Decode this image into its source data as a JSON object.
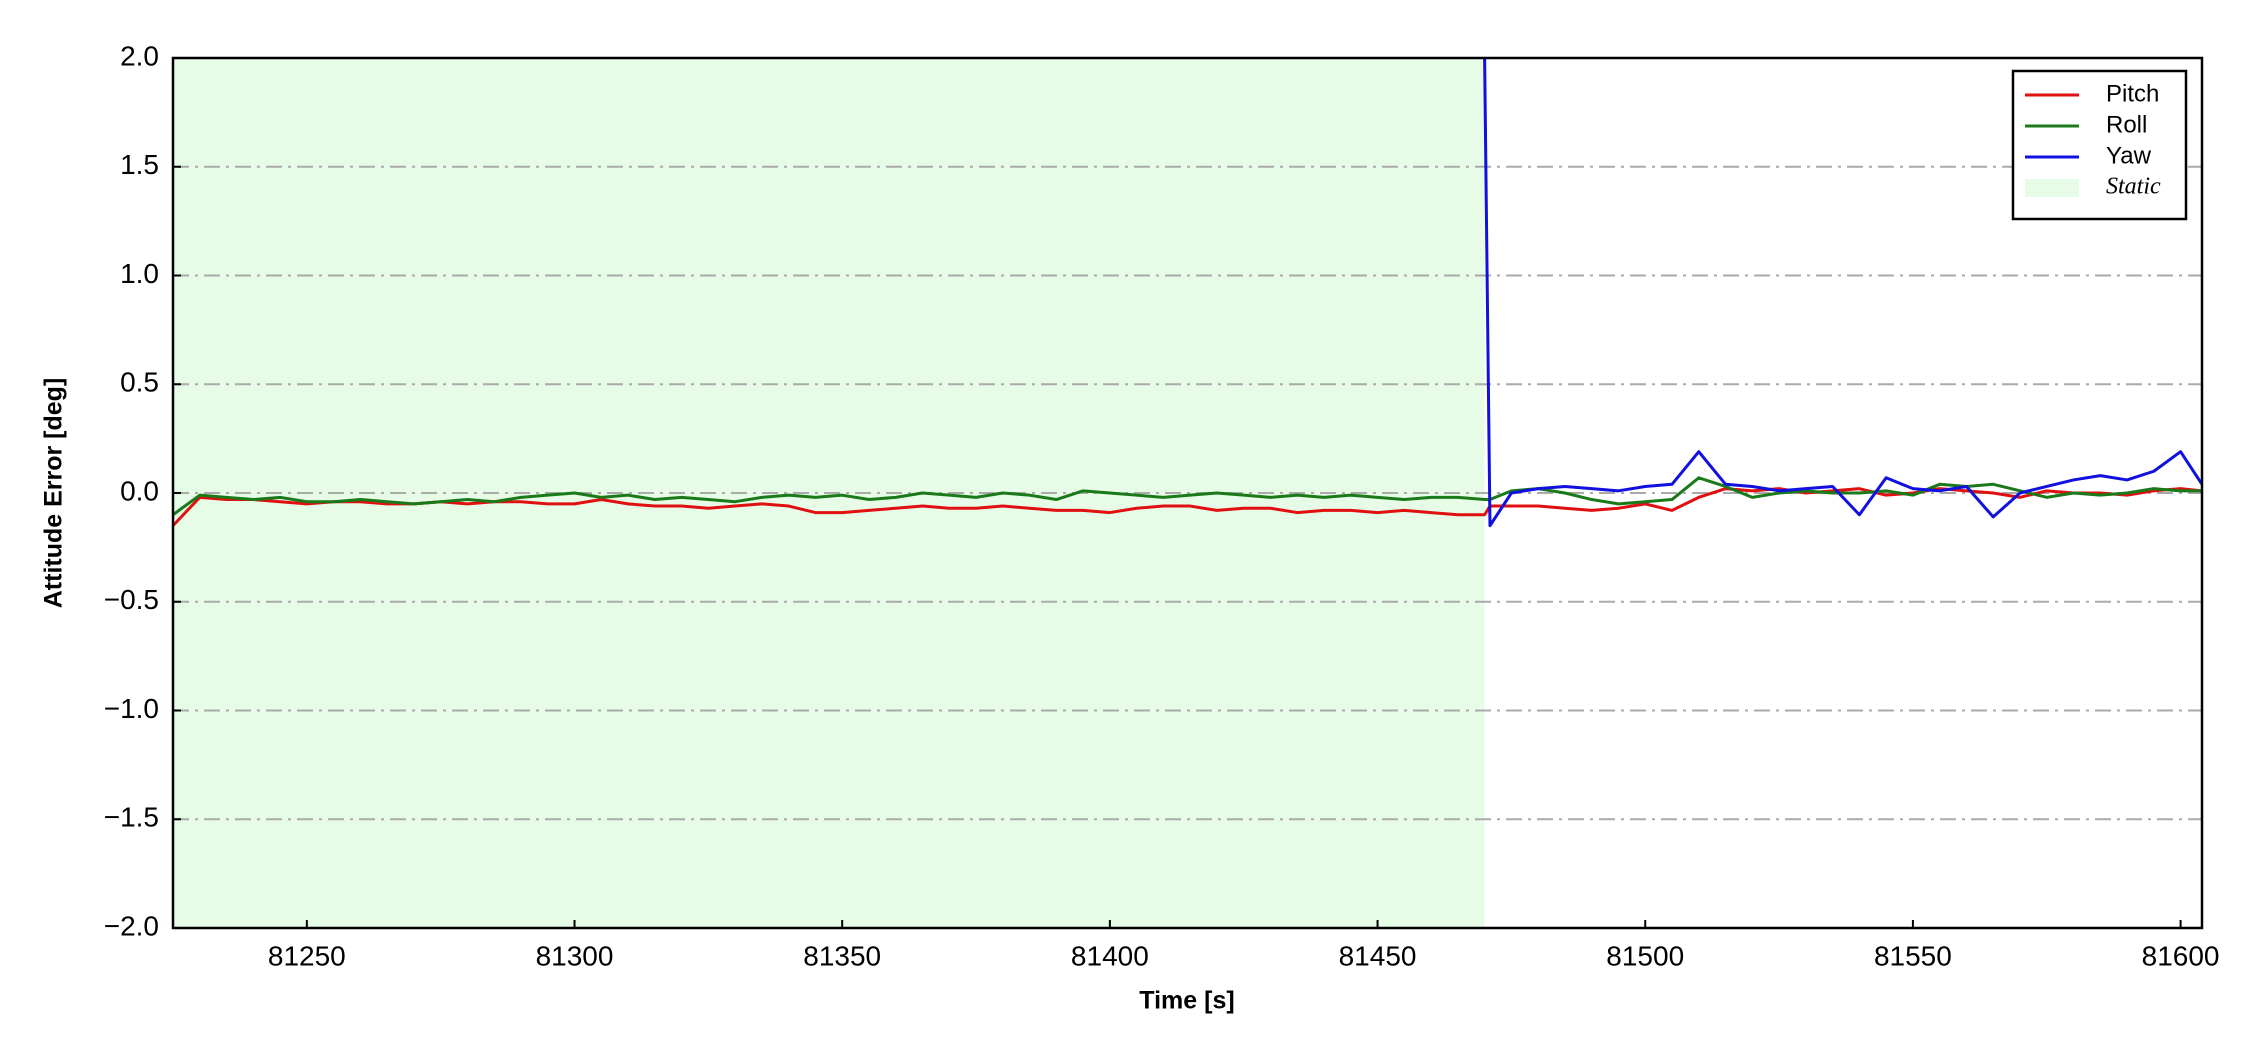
{
  "chart_data": {
    "type": "line",
    "xlabel": "Time [s]",
    "ylabel": "Attitude Error [deg]",
    "x": [
      81225,
      81230,
      81235,
      81240,
      81245,
      81250,
      81255,
      81260,
      81265,
      81270,
      81275,
      81280,
      81285,
      81290,
      81295,
      81300,
      81305,
      81310,
      81315,
      81320,
      81325,
      81330,
      81335,
      81340,
      81345,
      81350,
      81355,
      81360,
      81365,
      81370,
      81375,
      81380,
      81385,
      81390,
      81395,
      81400,
      81405,
      81410,
      81415,
      81420,
      81425,
      81430,
      81435,
      81440,
      81445,
      81450,
      81455,
      81460,
      81465,
      81470,
      81471,
      81475,
      81480,
      81485,
      81490,
      81495,
      81500,
      81505,
      81510,
      81515,
      81520,
      81525,
      81530,
      81535,
      81540,
      81545,
      81550,
      81555,
      81560,
      81565,
      81570,
      81575,
      81580,
      81585,
      81590,
      81595,
      81600,
      81604
    ],
    "series": [
      {
        "name": "Pitch",
        "color": "#e01010",
        "values": [
          -0.15,
          -0.02,
          -0.03,
          -0.03,
          -0.04,
          -0.05,
          -0.04,
          -0.04,
          -0.05,
          -0.05,
          -0.04,
          -0.05,
          -0.04,
          -0.04,
          -0.05,
          -0.05,
          -0.03,
          -0.05,
          -0.06,
          -0.06,
          -0.07,
          -0.06,
          -0.05,
          -0.06,
          -0.09,
          -0.09,
          -0.08,
          -0.07,
          -0.06,
          -0.07,
          -0.07,
          -0.06,
          -0.07,
          -0.08,
          -0.08,
          -0.09,
          -0.07,
          -0.06,
          -0.06,
          -0.08,
          -0.07,
          -0.07,
          -0.09,
          -0.08,
          -0.08,
          -0.09,
          -0.08,
          -0.09,
          -0.1,
          -0.1,
          -0.06,
          -0.06,
          -0.06,
          -0.07,
          -0.08,
          -0.07,
          -0.05,
          -0.08,
          -0.02,
          0.02,
          0.01,
          0.02,
          0.0,
          0.01,
          0.02,
          -0.01,
          0.0,
          0.02,
          0.01,
          0.0,
          -0.02,
          0.01,
          0.0,
          0.0,
          -0.01,
          0.01,
          0.02,
          0.01
        ]
      },
      {
        "name": "Roll",
        "color": "#1a7a1a",
        "values": [
          -0.1,
          -0.01,
          -0.02,
          -0.03,
          -0.02,
          -0.04,
          -0.04,
          -0.03,
          -0.04,
          -0.05,
          -0.04,
          -0.03,
          -0.04,
          -0.02,
          -0.01,
          0.0,
          -0.02,
          -0.01,
          -0.03,
          -0.02,
          -0.03,
          -0.04,
          -0.02,
          -0.01,
          -0.02,
          -0.01,
          -0.03,
          -0.02,
          0.0,
          -0.01,
          -0.02,
          0.0,
          -0.01,
          -0.03,
          0.01,
          0.0,
          -0.01,
          -0.02,
          -0.01,
          0.0,
          -0.01,
          -0.02,
          -0.01,
          -0.02,
          -0.01,
          -0.02,
          -0.03,
          -0.02,
          -0.02,
          -0.03,
          -0.03,
          0.01,
          0.02,
          0.0,
          -0.03,
          -0.05,
          -0.04,
          -0.03,
          0.07,
          0.03,
          -0.02,
          0.0,
          0.01,
          0.0,
          0.0,
          0.01,
          -0.01,
          0.04,
          0.03,
          0.04,
          0.01,
          -0.02,
          0.0,
          -0.01,
          0.0,
          0.02,
          0.01,
          0.01
        ]
      },
      {
        "name": "Yaw",
        "color": "#1010e0",
        "values": [
          null,
          null,
          null,
          null,
          null,
          null,
          null,
          null,
          null,
          null,
          null,
          null,
          null,
          null,
          null,
          null,
          null,
          null,
          null,
          null,
          null,
          null,
          null,
          null,
          null,
          null,
          null,
          null,
          null,
          null,
          null,
          null,
          null,
          null,
          null,
          null,
          null,
          null,
          null,
          null,
          null,
          null,
          null,
          null,
          null,
          null,
          null,
          null,
          null,
          2.0,
          -0.15,
          0.0,
          0.02,
          0.03,
          0.02,
          0.01,
          0.03,
          0.04,
          0.19,
          0.04,
          0.03,
          0.01,
          0.02,
          0.03,
          -0.1,
          0.07,
          0.02,
          0.01,
          0.03,
          -0.11,
          0.0,
          0.03,
          0.06,
          0.08,
          0.06,
          0.1,
          0.19,
          0.04
        ]
      }
    ],
    "shaded_region": {
      "label": "Static",
      "xrange": [
        81225,
        81470
      ],
      "color": "#e6fce6"
    },
    "xlim": [
      81225,
      81604
    ],
    "xticks": [
      81250,
      81300,
      81350,
      81400,
      81450,
      81500,
      81550,
      81600
    ],
    "ylim": [
      -2.0,
      2.0
    ],
    "yticks": [
      {
        "value": -2.0,
        "label": "−2.0"
      },
      {
        "value": -1.5,
        "label": "−1.5"
      },
      {
        "value": -1.0,
        "label": "−1.0"
      },
      {
        "value": -0.5,
        "label": "−0.5"
      },
      {
        "value": 0.0,
        "label": "0.0"
      },
      {
        "value": 0.5,
        "label": "0.5"
      },
      {
        "value": 1.0,
        "label": "1.0"
      },
      {
        "value": 1.5,
        "label": "1.5"
      },
      {
        "value": 2.0,
        "label": "2.0"
      }
    ],
    "grid": true,
    "legend": "upper right"
  }
}
